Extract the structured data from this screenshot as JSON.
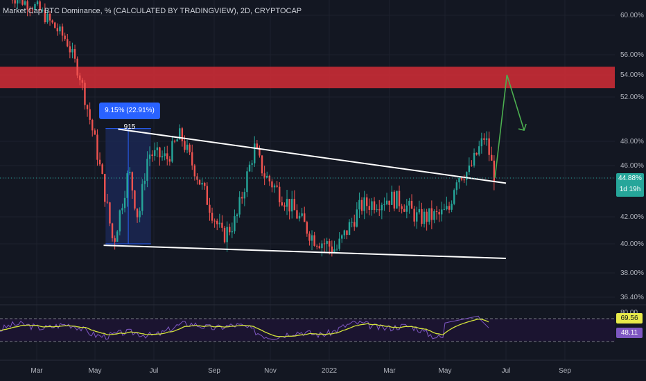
{
  "header": {
    "title": "Market Cap BTC Dominance, % (CALCULATED BY TRADINGVIEW), 2D, CRYPTOCAP"
  },
  "measure": {
    "label": "9.15% (22.91%) 915"
  },
  "price_tag": {
    "value": "44.88%",
    "countdown": "1d 19h"
  },
  "rsi": {
    "rsi_value": "69.56",
    "ma_value": "48.11",
    "top_level_label": "80.00"
  },
  "colors": {
    "background": "#131722",
    "up": "#26a69a",
    "down": "#ef5350",
    "resistance_zone": "#c62b35",
    "rsi_line": "#7e57c2",
    "rsi_ma": "#d4e33b",
    "projection": "#4caf50",
    "measure": "#2962ff"
  },
  "chart_data": {
    "type": "candlestick",
    "title": "Market Cap BTC Dominance, % (CALCULATED BY TRADINGVIEW), 2D, CRYPTOCAP",
    "y_axis": {
      "ticks": [
        "60.00%",
        "56.00%",
        "54.00%",
        "52.00%",
        "48.00%",
        "46.00%",
        "44.88%",
        "42.00%",
        "40.00%",
        "38.00%",
        "36.40%"
      ],
      "ylim": [
        35.5,
        61
      ]
    },
    "x_axis": {
      "ticks": [
        "Mar",
        "May",
        "Jul",
        "Sep",
        "Nov",
        "2022",
        "Mar",
        "May",
        "Jul",
        "Sep"
      ]
    },
    "price_path": [
      {
        "date": "2021-02-01",
        "close": 62.0
      },
      {
        "date": "2021-03-01",
        "close": 60.8
      },
      {
        "date": "2021-04-01",
        "close": 57.5
      },
      {
        "date": "2021-04-15",
        "close": 54.0
      },
      {
        "date": "2021-05-01",
        "close": 48.0
      },
      {
        "date": "2021-05-20",
        "close": 40.0
      },
      {
        "date": "2021-06-05",
        "close": 45.5
      },
      {
        "date": "2021-06-15",
        "close": 41.8
      },
      {
        "date": "2021-06-25",
        "close": 47.0
      },
      {
        "date": "2021-07-15",
        "close": 46.6
      },
      {
        "date": "2021-07-28",
        "close": 48.6
      },
      {
        "date": "2021-08-15",
        "close": 45.0
      },
      {
        "date": "2021-09-10",
        "close": 40.5
      },
      {
        "date": "2021-09-25",
        "close": 41.8
      },
      {
        "date": "2021-10-15",
        "close": 47.5
      },
      {
        "date": "2021-10-25",
        "close": 45.2
      },
      {
        "date": "2021-11-25",
        "close": 42.5
      },
      {
        "date": "2021-12-15",
        "close": 40.5
      },
      {
        "date": "2022-01-08",
        "close": 39.6
      },
      {
        "date": "2022-02-01",
        "close": 42.8
      },
      {
        "date": "2022-03-01",
        "close": 43.4
      },
      {
        "date": "2022-03-15",
        "close": 43.1
      },
      {
        "date": "2022-04-01",
        "close": 41.9
      },
      {
        "date": "2022-04-25",
        "close": 42.1
      },
      {
        "date": "2022-05-05",
        "close": 42.5
      },
      {
        "date": "2022-05-12",
        "close": 45.0
      },
      {
        "date": "2022-05-25",
        "close": 45.5
      },
      {
        "date": "2022-06-10",
        "close": 48.5
      },
      {
        "date": "2022-06-20",
        "close": 44.9
      }
    ],
    "resistance_zone": {
      "from": 52.8,
      "to": 54.8
    },
    "trendlines": [
      {
        "name": "upper",
        "from": {
          "date": "2021-05-25",
          "price": 49.1
        },
        "to": {
          "date": "2022-07-01",
          "price": 44.5
        }
      },
      {
        "name": "lower",
        "from": {
          "date": "2021-05-10",
          "price": 39.9
        },
        "to": {
          "date": "2022-07-01",
          "price": 39.0
        }
      }
    ],
    "projection": [
      {
        "date": "2022-06-20",
        "price": 44.9
      },
      {
        "date": "2022-07-02",
        "price": 54.0
      },
      {
        "date": "2022-07-20",
        "price": 49.0
      }
    ],
    "measure_box": {
      "from": 40.0,
      "to": 49.15,
      "change_pct": 9.15,
      "change_rel": 22.91,
      "bars": 915
    },
    "last_price": 44.88,
    "rsi_panel": {
      "levels": [
        70,
        30
      ],
      "rsi_last": 69.56,
      "ma_last": 48.11
    }
  }
}
